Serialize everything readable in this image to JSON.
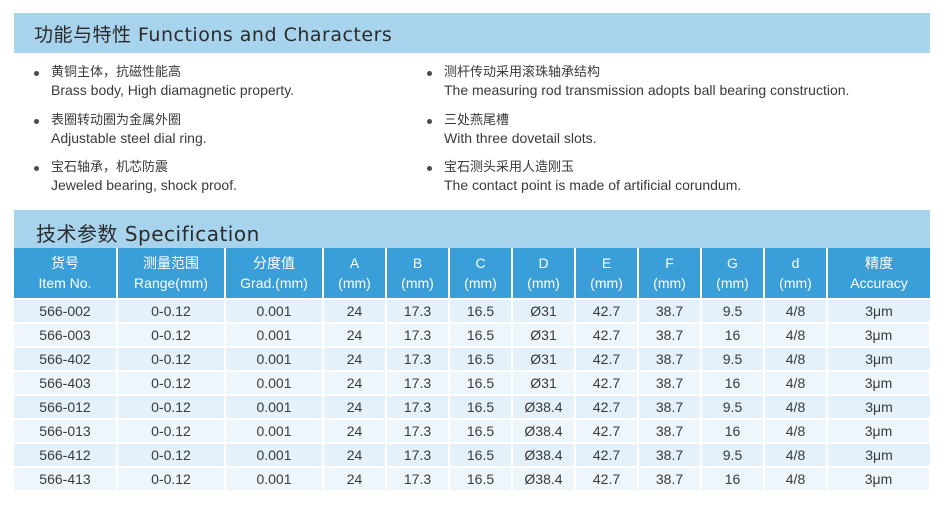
{
  "functions": {
    "title": "功能与特性 Functions and Characters",
    "left": [
      {
        "cn": "黄铜主体，抗磁性能高",
        "en": "Brass body, High diamagnetic property."
      },
      {
        "cn": "表圈转动圈为金属外圈",
        "en": "Adjustable steel dial ring."
      },
      {
        "cn": "宝石轴承，机芯防震",
        "en": "Jeweled bearing, shock proof."
      }
    ],
    "right": [
      {
        "cn": "测杆传动采用滚珠轴承结构",
        "en": "The measuring rod transmission adopts ball bearing construction."
      },
      {
        "cn": "三处燕尾槽",
        "en": "With three dovetail slots."
      },
      {
        "cn": "宝石测头采用人造刚玉",
        "en": "The contact point is made of artificial corundum."
      }
    ]
  },
  "specification": {
    "title": "技术参数 Specification",
    "headers": [
      [
        "货号",
        "Item No."
      ],
      [
        "测量范围",
        "Range(mm)"
      ],
      [
        "分度值",
        "Grad.(mm)"
      ],
      [
        "A",
        "(mm)"
      ],
      [
        "B",
        "(mm)"
      ],
      [
        "C",
        "(mm)"
      ],
      [
        "D",
        "(mm)"
      ],
      [
        "E",
        "(mm)"
      ],
      [
        "F",
        "(mm)"
      ],
      [
        "G",
        "(mm)"
      ],
      [
        "d",
        "(mm)"
      ],
      [
        "精度",
        "Accuracy"
      ]
    ],
    "rows": [
      [
        "566-002",
        "0-0.12",
        "0.001",
        "24",
        "17.3",
        "16.5",
        "Ø31",
        "42.7",
        "38.7",
        "9.5",
        "4/8",
        "3μm"
      ],
      [
        "566-003",
        "0-0.12",
        "0.001",
        "24",
        "17.3",
        "16.5",
        "Ø31",
        "42.7",
        "38.7",
        "16",
        "4/8",
        "3μm"
      ],
      [
        "566-402",
        "0-0.12",
        "0.001",
        "24",
        "17.3",
        "16.5",
        "Ø31",
        "42.7",
        "38.7",
        "9.5",
        "4/8",
        "3μm"
      ],
      [
        "566-403",
        "0-0.12",
        "0.001",
        "24",
        "17.3",
        "16.5",
        "Ø31",
        "42.7",
        "38.7",
        "16",
        "4/8",
        "3μm"
      ],
      [
        "566-012",
        "0-0.12",
        "0.001",
        "24",
        "17.3",
        "16.5",
        "Ø38.4",
        "42.7",
        "38.7",
        "9.5",
        "4/8",
        "3μm"
      ],
      [
        "566-013",
        "0-0.12",
        "0.001",
        "24",
        "17.3",
        "16.5",
        "Ø38.4",
        "42.7",
        "38.7",
        "16",
        "4/8",
        "3μm"
      ],
      [
        "566-412",
        "0-0.12",
        "0.001",
        "24",
        "17.3",
        "16.5",
        "Ø38.4",
        "42.7",
        "38.7",
        "9.5",
        "4/8",
        "3μm"
      ],
      [
        "566-413",
        "0-0.12",
        "0.001",
        "24",
        "17.3",
        "16.5",
        "Ø38.4",
        "42.7",
        "38.7",
        "16",
        "4/8",
        "3μm"
      ]
    ]
  }
}
